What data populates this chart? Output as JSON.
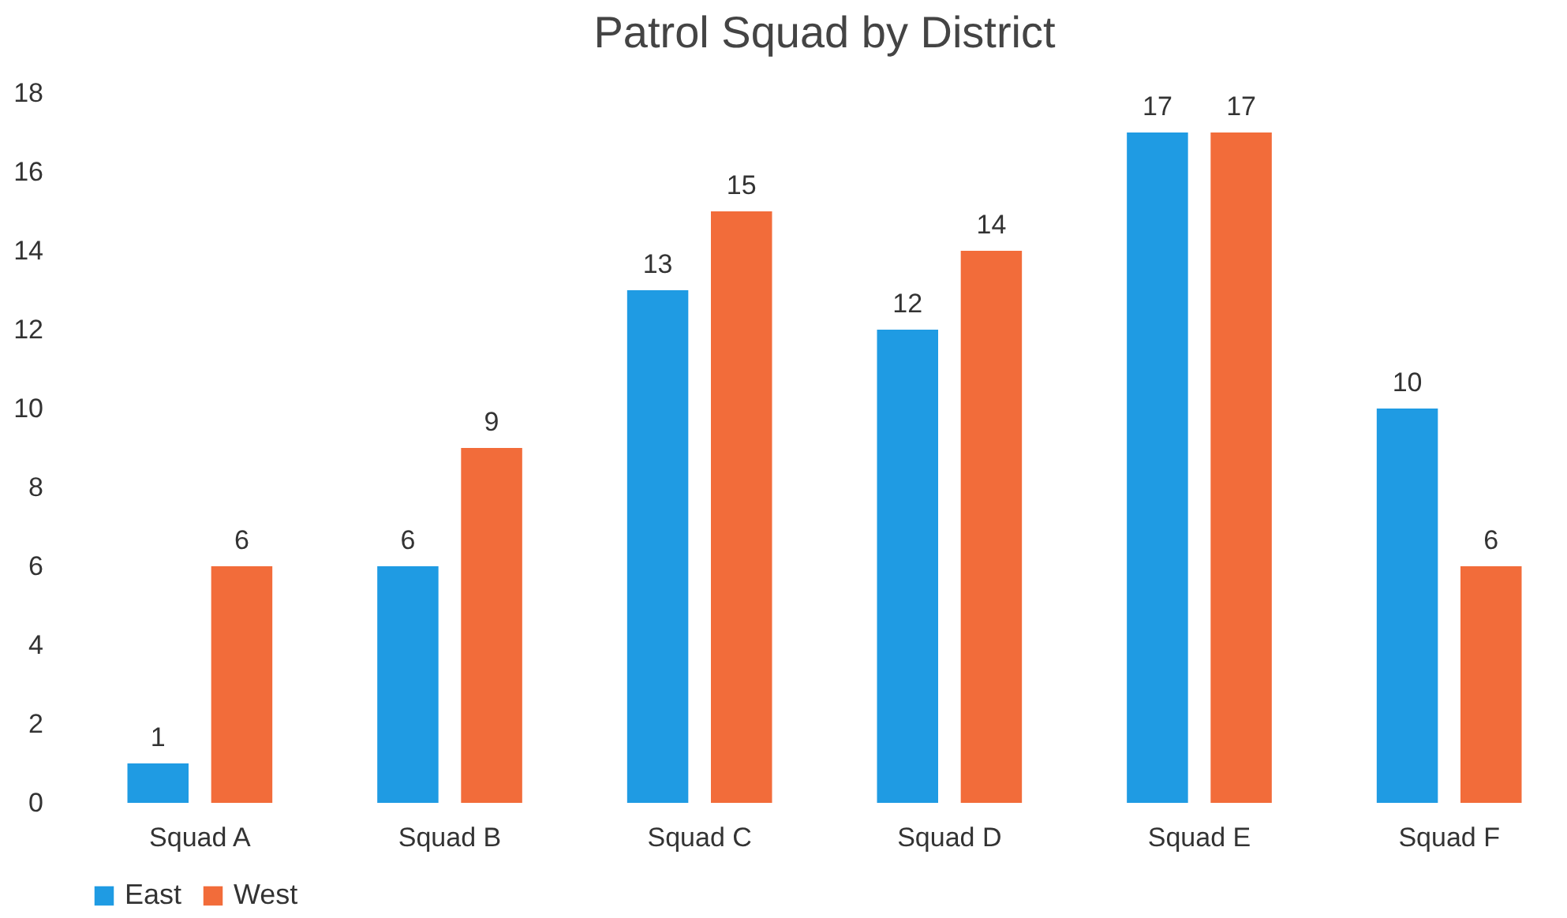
{
  "chart_data": {
    "type": "bar",
    "title": "Patrol Squad by District",
    "categories": [
      "Squad A",
      "Squad B",
      "Squad C",
      "Squad D",
      "Squad E",
      "Squad F"
    ],
    "series": [
      {
        "name": "East",
        "color": "#1f9be3",
        "values": [
          1,
          6,
          13,
          12,
          17,
          10
        ]
      },
      {
        "name": "West",
        "color": "#f26c3a",
        "values": [
          6,
          9,
          15,
          14,
          17,
          6
        ]
      }
    ],
    "ylim": [
      0,
      18
    ],
    "yticks": [
      0,
      2,
      4,
      6,
      8,
      10,
      12,
      14,
      16,
      18
    ],
    "grid": false,
    "legend": "bottom",
    "data_labels": true
  }
}
